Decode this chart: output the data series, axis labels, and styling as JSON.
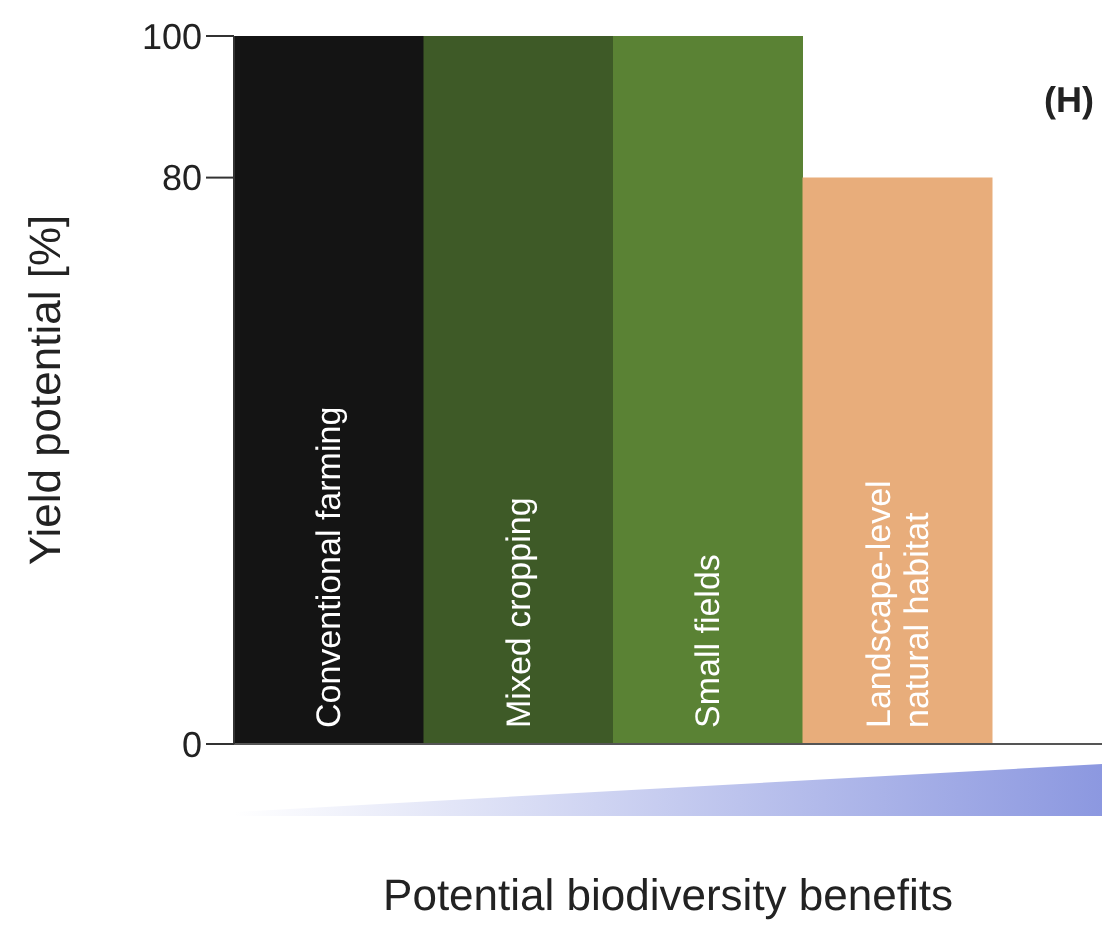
{
  "chart_data": {
    "type": "bar",
    "categories": [
      "Conventional farming",
      "Mixed cropping",
      "Small fields",
      "Landscape-level natural habitat"
    ],
    "values": [
      100,
      100,
      100,
      80
    ],
    "colors": [
      "#141414",
      "#3e5a27",
      "#5a8234",
      "#e8ad7b"
    ],
    "ylim": [
      0,
      100
    ],
    "yticks": [
      0,
      80,
      100
    ],
    "ylabel": "Yield potential [%]",
    "xlabel": "Potential biodiversity benefits",
    "annotations": [
      "(H)"
    ]
  }
}
